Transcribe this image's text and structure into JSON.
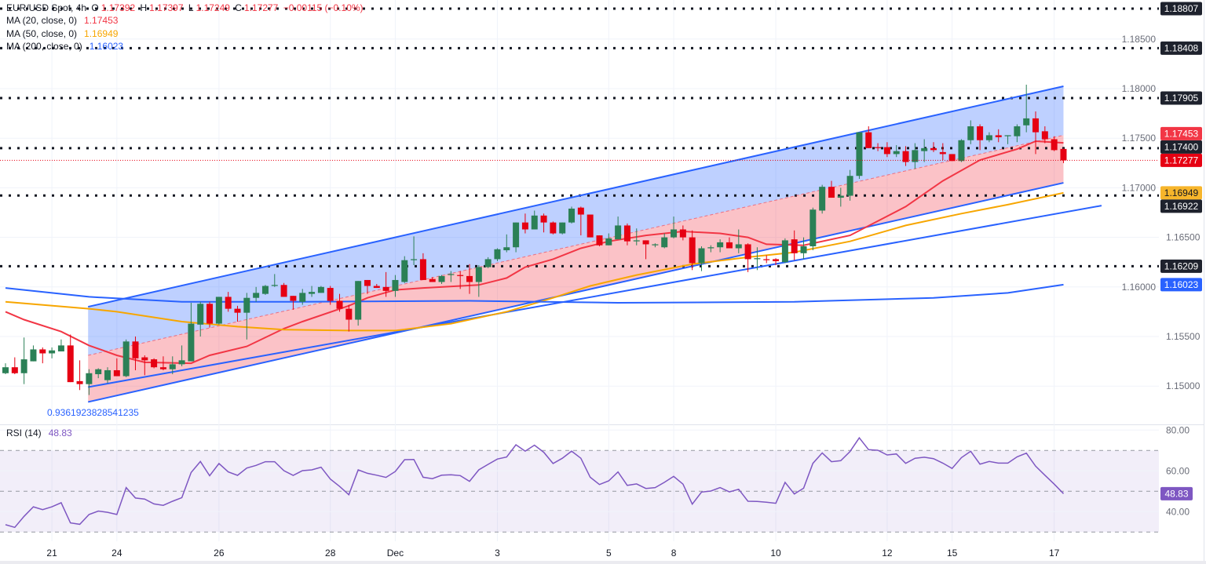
{
  "legend": {
    "symbol": "EUR/USD Spot, 4h",
    "o_label": "O",
    "open": "1.17392",
    "h_label": "H",
    "high": "1.17397",
    "l_label": "L",
    "low": "1.17249",
    "c_label": "C",
    "close": "1.17277",
    "change": "−0.00115 (−0.10%)",
    "value_color": "#f23645"
  },
  "ma_legend": [
    {
      "label": "MA (20, close, 0)",
      "value": "1.17453",
      "color": "#f23645"
    },
    {
      "label": "MA (50, close, 0)",
      "value": "1.16949",
      "color": "#f7a600"
    },
    {
      "label": "MA (200, close, 0)",
      "value": "1.16023",
      "color": "#2962ff"
    }
  ],
  "rsi_legend": {
    "label": "RSI (14)",
    "value": "48.83",
    "color": "#7e57c2"
  },
  "fib_label": "0.9361923828541235",
  "chart_data": {
    "type": "candlestick",
    "symbol": "EUR/USD",
    "timeframe": "4h",
    "colors": {
      "up": "#2b8056",
      "down": "#e60012",
      "channel_line": "#2962ff",
      "channel_upper_fill": "#2962ff",
      "channel_lower_fill": "#f23645",
      "rsi": "#7e57c2",
      "level_badge": "#1e222d"
    },
    "ylim": [
      1.1478,
      1.189
    ],
    "y_ticks": [
      "1.18500",
      "1.18000",
      "1.17500",
      "1.17000",
      "1.16500",
      "1.16000",
      "1.15500",
      "1.15000"
    ],
    "x_ticks": [
      {
        "label": "21",
        "candle": 5
      },
      {
        "label": "24",
        "candle": 12
      },
      {
        "label": "26",
        "candle": 23
      },
      {
        "label": "28",
        "candle": 35
      },
      {
        "label": "Dec",
        "candle": 42
      },
      {
        "label": "3",
        "candle": 53
      },
      {
        "label": "5",
        "candle": 65
      },
      {
        "label": "8",
        "candle": 72
      },
      {
        "label": "10",
        "candle": 83
      },
      {
        "label": "12",
        "candle": 95
      },
      {
        "label": "15",
        "candle": 102
      },
      {
        "label": "17",
        "candle": 113
      }
    ],
    "ohlc": [
      [
        1.1513,
        1.1523,
        1.1512,
        1.1519
      ],
      [
        1.1519,
        1.1529,
        1.1512,
        1.1513
      ],
      [
        1.1513,
        1.1549,
        1.1502,
        1.1527
      ],
      [
        1.1525,
        1.1541,
        1.1525,
        1.1537
      ],
      [
        1.1537,
        1.1539,
        1.1523,
        1.1533
      ],
      [
        1.1533,
        1.1539,
        1.1528,
        1.1536
      ],
      [
        1.1535,
        1.1547,
        1.1535,
        1.1541
      ],
      [
        1.1541,
        1.1552,
        1.1504,
        1.1504
      ],
      [
        1.1505,
        1.1526,
        1.1496,
        1.1502
      ],
      [
        1.1502,
        1.1517,
        1.1491,
        1.1513
      ],
      [
        1.1512,
        1.1518,
        1.1508,
        1.1517
      ],
      [
        1.1506,
        1.1519,
        1.1503,
        1.1516
      ],
      [
        1.1516,
        1.1528,
        1.151,
        1.151
      ],
      [
        1.151,
        1.1547,
        1.1509,
        1.1545
      ],
      [
        1.1545,
        1.155,
        1.1516,
        1.1528
      ],
      [
        1.1529,
        1.1531,
        1.1511,
        1.1526
      ],
      [
        1.1527,
        1.1528,
        1.1518,
        1.1519
      ],
      [
        1.1519,
        1.153,
        1.1516,
        1.1517
      ],
      [
        1.1517,
        1.153,
        1.1512,
        1.1522
      ],
      [
        1.1522,
        1.1541,
        1.152,
        1.1526
      ],
      [
        1.1525,
        1.1584,
        1.1525,
        1.1563
      ],
      [
        1.1562,
        1.1585,
        1.155,
        1.1583
      ],
      [
        1.1583,
        1.1585,
        1.1559,
        1.1563
      ],
      [
        1.1563,
        1.159,
        1.1562,
        1.159
      ],
      [
        1.159,
        1.1595,
        1.1575,
        1.1578
      ],
      [
        1.1578,
        1.1581,
        1.1565,
        1.1574
      ],
      [
        1.1574,
        1.1594,
        1.1547,
        1.1589
      ],
      [
        1.1589,
        1.16,
        1.1585,
        1.1594
      ],
      [
        1.1593,
        1.1602,
        1.1592,
        1.1601
      ],
      [
        1.1601,
        1.1613,
        1.16,
        1.1602
      ],
      [
        1.1602,
        1.1604,
        1.159,
        1.159
      ],
      [
        1.1591,
        1.1591,
        1.1577,
        1.1586
      ],
      [
        1.1585,
        1.1598,
        1.1582,
        1.1594
      ],
      [
        1.1593,
        1.1601,
        1.159,
        1.1595
      ],
      [
        1.1594,
        1.1601,
        1.1594,
        1.16
      ],
      [
        1.1599,
        1.1601,
        1.1582,
        1.1586
      ],
      [
        1.1586,
        1.1593,
        1.1575,
        1.1578
      ],
      [
        1.1578,
        1.1582,
        1.1555,
        1.1567
      ],
      [
        1.1567,
        1.1606,
        1.1561,
        1.1606
      ],
      [
        1.1607,
        1.1607,
        1.1593,
        1.1601
      ],
      [
        1.1601,
        1.1603,
        1.1599,
        1.1599
      ],
      [
        1.16,
        1.1615,
        1.159,
        1.1596
      ],
      [
        1.1596,
        1.1612,
        1.159,
        1.1607
      ],
      [
        1.1605,
        1.1631,
        1.1604,
        1.1627
      ],
      [
        1.1627,
        1.1651,
        1.1622,
        1.1628
      ],
      [
        1.1628,
        1.1634,
        1.1607,
        1.1607
      ],
      [
        1.1608,
        1.161,
        1.1605,
        1.1605
      ],
      [
        1.1605,
        1.1612,
        1.1603,
        1.1611
      ],
      [
        1.1612,
        1.1616,
        1.1605,
        1.1613
      ],
      [
        1.1612,
        1.1616,
        1.1598,
        1.1611
      ],
      [
        1.1611,
        1.1623,
        1.1593,
        1.1605
      ],
      [
        1.1605,
        1.1622,
        1.159,
        1.162
      ],
      [
        1.162,
        1.163,
        1.1619,
        1.1628
      ],
      [
        1.1628,
        1.1639,
        1.1626,
        1.1638
      ],
      [
        1.1637,
        1.1653,
        1.1635,
        1.164
      ],
      [
        1.164,
        1.1665,
        1.1635,
        1.1665
      ],
      [
        1.1665,
        1.1674,
        1.1654,
        1.1658
      ],
      [
        1.1658,
        1.1677,
        1.1658,
        1.1672
      ],
      [
        1.1672,
        1.1674,
        1.1655,
        1.1665
      ],
      [
        1.1665,
        1.1666,
        1.1653,
        1.1654
      ],
      [
        1.1654,
        1.1665,
        1.1653,
        1.1665
      ],
      [
        1.1665,
        1.1681,
        1.1664,
        1.1679
      ],
      [
        1.168,
        1.1681,
        1.1652,
        1.1673
      ],
      [
        1.1673,
        1.1673,
        1.165,
        1.165
      ],
      [
        1.1652,
        1.1652,
        1.1641,
        1.1642
      ],
      [
        1.1642,
        1.1654,
        1.1642,
        1.1649
      ],
      [
        1.1648,
        1.1671,
        1.1648,
        1.1662
      ],
      [
        1.1662,
        1.1664,
        1.1642,
        1.1646
      ],
      [
        1.1646,
        1.1659,
        1.1642,
        1.1647
      ],
      [
        1.1647,
        1.1647,
        1.1628,
        1.1643
      ],
      [
        1.1642,
        1.1644,
        1.164,
        1.1643
      ],
      [
        1.164,
        1.1654,
        1.1639,
        1.165
      ],
      [
        1.165,
        1.1671,
        1.1649,
        1.1658
      ],
      [
        1.1658,
        1.1662,
        1.1647,
        1.165
      ],
      [
        1.165,
        1.1657,
        1.1617,
        1.1624
      ],
      [
        1.1624,
        1.1641,
        1.1616,
        1.1639
      ],
      [
        1.1639,
        1.1642,
        1.1635,
        1.164
      ],
      [
        1.164,
        1.1648,
        1.1635,
        1.1645
      ],
      [
        1.1645,
        1.165,
        1.1639,
        1.1639
      ],
      [
        1.1639,
        1.1658,
        1.1634,
        1.1643
      ],
      [
        1.1643,
        1.1644,
        1.1615,
        1.1628
      ],
      [
        1.1628,
        1.164,
        1.1617,
        1.1629
      ],
      [
        1.1628,
        1.1632,
        1.1624,
        1.1627
      ],
      [
        1.1628,
        1.1629,
        1.1622,
        1.1626
      ],
      [
        1.1625,
        1.1649,
        1.1624,
        1.1647
      ],
      [
        1.1648,
        1.1657,
        1.1627,
        1.1634
      ],
      [
        1.1634,
        1.165,
        1.1628,
        1.1641
      ],
      [
        1.1641,
        1.168,
        1.1637,
        1.1678
      ],
      [
        1.1677,
        1.1703,
        1.1674,
        1.1701
      ],
      [
        1.1701,
        1.1707,
        1.169,
        1.169
      ],
      [
        1.169,
        1.17,
        1.1681,
        1.1692
      ],
      [
        1.1692,
        1.1718,
        1.1687,
        1.1712
      ],
      [
        1.1712,
        1.1756,
        1.1709,
        1.1756
      ],
      [
        1.1756,
        1.1762,
        1.174,
        1.174
      ],
      [
        1.1741,
        1.1745,
        1.1737,
        1.174
      ],
      [
        1.1741,
        1.1746,
        1.1731,
        1.1734
      ],
      [
        1.1734,
        1.1743,
        1.1731,
        1.1737
      ],
      [
        1.1737,
        1.1742,
        1.1722,
        1.1726
      ],
      [
        1.1726,
        1.1745,
        1.1719,
        1.1738
      ],
      [
        1.1737,
        1.1749,
        1.1726,
        1.174
      ],
      [
        1.174,
        1.1746,
        1.1736,
        1.1738
      ],
      [
        1.1736,
        1.1745,
        1.1728,
        1.1734
      ],
      [
        1.1734,
        1.1734,
        1.1727,
        1.1727
      ],
      [
        1.1727,
        1.1749,
        1.1726,
        1.1748
      ],
      [
        1.1748,
        1.1768,
        1.1744,
        1.1762
      ],
      [
        1.1762,
        1.1764,
        1.1738,
        1.1748
      ],
      [
        1.1748,
        1.1756,
        1.1746,
        1.1753
      ],
      [
        1.1753,
        1.1759,
        1.1746,
        1.1751
      ],
      [
        1.1752,
        1.1753,
        1.1744,
        1.1753
      ],
      [
        1.1752,
        1.1764,
        1.1746,
        1.1762
      ],
      [
        1.1763,
        1.1804,
        1.1756,
        1.177
      ],
      [
        1.177,
        1.1777,
        1.1734,
        1.1756
      ],
      [
        1.1757,
        1.1762,
        1.1745,
        1.1749
      ],
      [
        1.1749,
        1.1752,
        1.1737,
        1.1738
      ],
      [
        1.17392,
        1.17397,
        1.17249,
        1.17277
      ]
    ],
    "moving_averages": [
      {
        "name": "MA (20, close, 0)",
        "color": "#f23645",
        "points": [
          [
            0,
            1.1575
          ],
          [
            2,
            1.1567
          ],
          [
            6,
            1.1555
          ],
          [
            9,
            1.1541
          ],
          [
            12,
            1.1531
          ],
          [
            15,
            1.1524
          ],
          [
            20,
            1.1523
          ],
          [
            22,
            1.1531
          ],
          [
            26,
            1.154
          ],
          [
            30,
            1.1558
          ],
          [
            32,
            1.1565
          ],
          [
            37,
            1.1581
          ],
          [
            39,
            1.1589
          ],
          [
            42,
            1.1597
          ],
          [
            45,
            1.1599
          ],
          [
            51,
            1.1602
          ],
          [
            54,
            1.1609
          ],
          [
            56,
            1.162
          ],
          [
            59,
            1.1628
          ],
          [
            62,
            1.1639
          ],
          [
            65,
            1.1646
          ],
          [
            69,
            1.1652
          ],
          [
            73,
            1.1656
          ],
          [
            77,
            1.1654
          ],
          [
            80,
            1.165
          ],
          [
            82,
            1.1643
          ],
          [
            86,
            1.1642
          ],
          [
            91,
            1.1652
          ],
          [
            97,
            1.1681
          ],
          [
            101,
            1.1707
          ],
          [
            105,
            1.1728
          ],
          [
            109,
            1.1739
          ],
          [
            111,
            1.1747
          ],
          [
            114,
            1.17453
          ]
        ]
      },
      {
        "name": "MA (50, close, 0)",
        "color": "#f7a600",
        "points": [
          [
            0,
            1.1585
          ],
          [
            9,
            1.1578
          ],
          [
            12,
            1.1575
          ],
          [
            19,
            1.1565
          ],
          [
            25,
            1.156
          ],
          [
            30,
            1.1557
          ],
          [
            37,
            1.1556
          ],
          [
            42,
            1.1556
          ],
          [
            48,
            1.1563
          ],
          [
            54,
            1.1575
          ],
          [
            59,
            1.1589
          ],
          [
            63,
            1.1601
          ],
          [
            68,
            1.1612
          ],
          [
            74,
            1.1623
          ],
          [
            80,
            1.163
          ],
          [
            85,
            1.1635
          ],
          [
            91,
            1.1646
          ],
          [
            97,
            1.1662
          ],
          [
            103,
            1.1674
          ],
          [
            108,
            1.1683
          ],
          [
            114,
            1.16949
          ]
        ]
      },
      {
        "name": "MA (200, close, 0)",
        "color": "#2962ff",
        "points": [
          [
            0,
            1.1599
          ],
          [
            9,
            1.159
          ],
          [
            19,
            1.1585
          ],
          [
            30,
            1.1585
          ],
          [
            50,
            1.1586
          ],
          [
            66,
            1.1584
          ],
          [
            85,
            1.1585
          ],
          [
            100,
            1.1589
          ],
          [
            108,
            1.1594
          ],
          [
            114,
            1.16023
          ]
        ]
      }
    ],
    "channel": {
      "upper": [
        [
          8.9,
          1.158
        ],
        [
          114,
          1.18024
        ]
      ],
      "middle": [
        [
          8.9,
          1.1531
        ],
        [
          114,
          1.1753
        ]
      ],
      "lower": [
        [
          8.9,
          1.1484
        ],
        [
          114,
          1.1705
        ]
      ]
    },
    "trend_line": [
      [
        8.9,
        1.1499
      ],
      [
        118.1,
        1.1682
      ]
    ],
    "horizontal_levels": [
      "1.18807",
      "1.18408",
      "1.17905",
      "1.17400",
      "1.16922",
      "1.16209"
    ],
    "last_price": "1.17277",
    "price_badges": [
      {
        "value": "1.17277",
        "bg": "#e60012",
        "fg": "#ffffff"
      },
      {
        "value": "1.17400",
        "bg": "#1e222d",
        "fg": "#ffffff"
      },
      {
        "value": "1.16949",
        "bg": "#f7b52b",
        "fg": "#131722"
      },
      {
        "value": "1.16023",
        "bg": "#2962ff",
        "fg": "#ffffff"
      },
      {
        "value": "1.17453",
        "bg": "#f23645",
        "fg": "#ffffff"
      },
      {
        "value": "1.16922",
        "bg": "#1e222d",
        "fg": "#ffffff"
      },
      {
        "value": "1.18807",
        "bg": "#1e222d",
        "fg": "#ffffff"
      },
      {
        "value": "1.18408",
        "bg": "#1e222d",
        "fg": "#ffffff"
      },
      {
        "value": "1.17905",
        "bg": "#1e222d",
        "fg": "#ffffff"
      },
      {
        "value": "1.16209",
        "bg": "#1e222d",
        "fg": "#ffffff"
      }
    ],
    "rsi": {
      "name": "RSI (14)",
      "ylim": [
        24,
        82
      ],
      "y_ticks": [
        "80.00",
        "60.00",
        "40.00"
      ],
      "bands": [
        70,
        50,
        30
      ],
      "current": "48.83",
      "values": [
        33.6,
        32.3,
        37.7,
        42.4,
        41.0,
        42.4,
        44.4,
        34.5,
        33.8,
        38.6,
        40.3,
        39.7,
        38.6,
        51.8,
        46.7,
        46.2,
        43.8,
        43.1,
        45.1,
        46.9,
        59.2,
        64.6,
        57.6,
        63.6,
        59.5,
        57.8,
        61.4,
        62.7,
        64.5,
        64.5,
        60.1,
        57.8,
        60.1,
        60.5,
        61.8,
        56.0,
        52.4,
        48.3,
        60.5,
        58.8,
        57.9,
        56.8,
        59.7,
        65.5,
        65.6,
        56.9,
        56.2,
        57.9,
        58.1,
        57.7,
        54.9,
        60.5,
        63.2,
        65.8,
        66.8,
        72.8,
        69.7,
        72.6,
        69.1,
        63.6,
        66.2,
        69.7,
        66.2,
        56.9,
        53.3,
        55.1,
        59.5,
        52.9,
        53.6,
        51.4,
        51.8,
        54.4,
        57.3,
        53.5,
        43.7,
        49.6,
        50.1,
        51.8,
        49.7,
        51.0,
        45.1,
        45.0,
        44.6,
        44.1,
        54.4,
        48.7,
        51.5,
        63.7,
        68.8,
        64.5,
        65.0,
        69.5,
        76.2,
        70.4,
        70.1,
        67.8,
        68.3,
        63.7,
        66.2,
        66.7,
        66.0,
        63.8,
        61.2,
        66.5,
        69.6,
        63.3,
        64.6,
        63.8,
        63.8,
        66.9,
        68.7,
        62.3,
        57.9,
        53.5,
        48.83
      ]
    }
  }
}
